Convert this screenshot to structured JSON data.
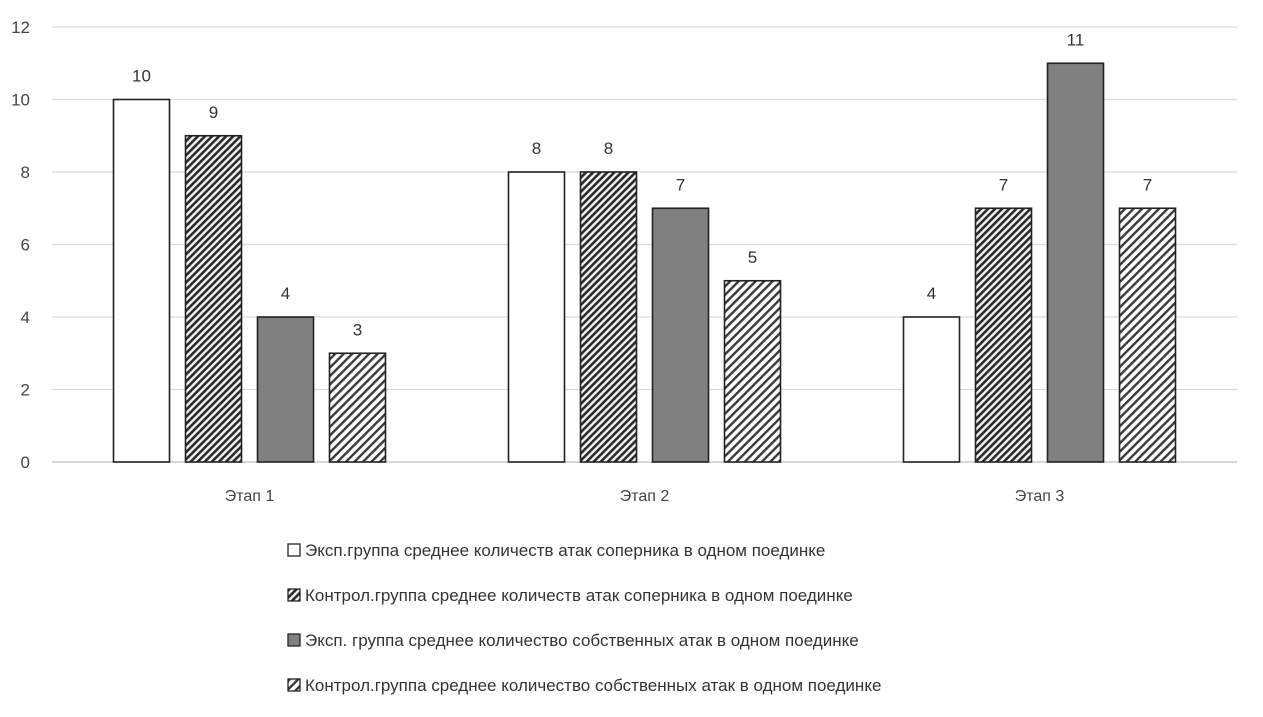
{
  "chart_data": {
    "type": "bar",
    "title": "",
    "xlabel": "",
    "ylabel": "",
    "ylim": [
      0,
      12
    ],
    "yticks": [
      0,
      2,
      4,
      6,
      8,
      10,
      12
    ],
    "grid": true,
    "legend_position": "bottom",
    "categories": [
      "Этап 1",
      "Этап 2",
      "Этап 3"
    ],
    "series": [
      {
        "name": "Эксп.группа среднее количеств атак соперника в одном поединке",
        "values": [
          10,
          8,
          4
        ],
        "fill": "white",
        "color": "#ffffff"
      },
      {
        "name": "Контрол.группа среднее количеств атак соперника в одном поединке",
        "values": [
          9,
          8,
          7
        ],
        "fill": "dense-hatch",
        "color": "#444444"
      },
      {
        "name": "Эксп. группа среднее количество собственных атак в одном поединке",
        "values": [
          4,
          7,
          11
        ],
        "fill": "solid",
        "color": "#808080"
      },
      {
        "name": "Контрол.группа среднее количество собственных атак в одном поединке",
        "values": [
          3,
          5,
          7
        ],
        "fill": "hatch",
        "color": "#555555"
      }
    ],
    "gridline_color": "#d9d9d9",
    "bar_stroke_color": "#222222"
  }
}
